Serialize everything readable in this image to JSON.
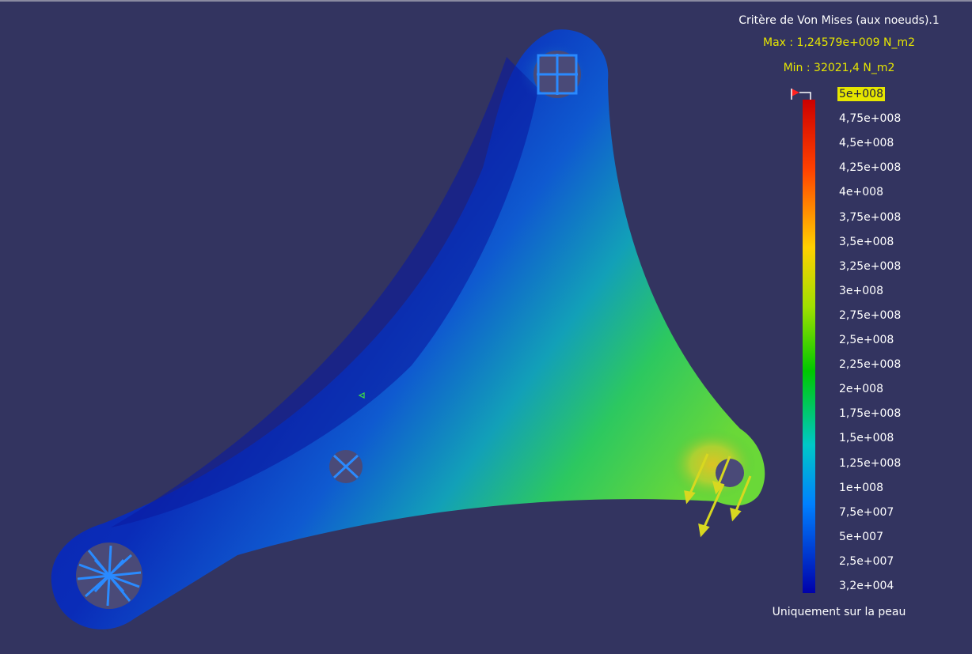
{
  "legend": {
    "title": "Critère de Von Mises (aux noeuds).1",
    "max_label": "Max : 1,24579e+009 N_m2",
    "min_label": "Min : 32021,4 N_m2",
    "footer": "Uniquement sur la peau",
    "ticks": [
      "5e+008",
      "4,75e+008",
      "4,5e+008",
      "4,25e+008",
      "4e+008",
      "3,75e+008",
      "3,5e+008",
      "3,25e+008",
      "3e+008",
      "2,75e+008",
      "2,5e+008",
      "2,25e+008",
      "2e+008",
      "1,75e+008",
      "1,5e+008",
      "1,25e+008",
      "1e+008",
      "7,5e+007",
      "5e+007",
      "2,5e+007",
      "3,2e+004"
    ],
    "colors": {
      "max": "#cc0000",
      "high": "#ff6600",
      "mid_high": "#ffff00",
      "mid": "#00c800",
      "mid_low": "#00c8c8",
      "low": "#0064ff",
      "min": "#0000aa"
    }
  }
}
